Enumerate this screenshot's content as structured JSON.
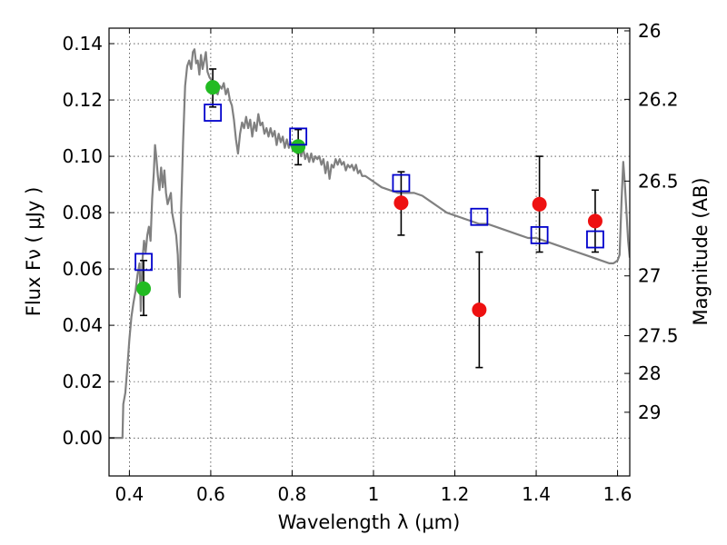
{
  "chart_data": {
    "type": "scatter",
    "xlabel": "Wavelength  λ (μm)",
    "ylabel": "Flux  Fν  ( μJy )",
    "y2label": "Magnitude (AB)",
    "xlim": [
      0.35,
      1.63
    ],
    "ylim": [
      -0.0135,
      0.1455
    ],
    "grid": true,
    "x_ticks": [
      {
        "value": 0.4,
        "label": "0.4"
      },
      {
        "value": 0.6,
        "label": "0.6"
      },
      {
        "value": 0.8,
        "label": "0.8"
      },
      {
        "value": 1.0,
        "label": "1"
      },
      {
        "value": 1.2,
        "label": "1.2"
      },
      {
        "value": 1.4,
        "label": "1.4"
      },
      {
        "value": 1.6,
        "label": "1.6"
      }
    ],
    "y_ticks": [
      {
        "value": 0.0,
        "label": "0.00"
      },
      {
        "value": 0.02,
        "label": "0.02"
      },
      {
        "value": 0.04,
        "label": "0.04"
      },
      {
        "value": 0.06,
        "label": "0.06"
      },
      {
        "value": 0.08,
        "label": "0.08"
      },
      {
        "value": 0.1,
        "label": "0.10"
      },
      {
        "value": 0.12,
        "label": "0.12"
      },
      {
        "value": 0.14,
        "label": "0.14"
      }
    ],
    "y2_ticks": [
      {
        "mag": 26,
        "label": "26"
      },
      {
        "mag": 26.2,
        "label": "26.2"
      },
      {
        "mag": 26.5,
        "label": "26.5"
      },
      {
        "mag": 27,
        "label": "27"
      },
      {
        "mag": 27.5,
        "label": "27.5"
      },
      {
        "mag": 28,
        "label": "28"
      },
      {
        "mag": 29,
        "label": "29"
      }
    ],
    "colors": {
      "model": "#808080",
      "optical_points": "#22bb22",
      "nir_points": "#ee1111",
      "model_squares": "#0000cc",
      "errorbars": "#000000",
      "grid": "#000000"
    },
    "series": [
      {
        "type": "line",
        "points": [
          [
            0.35,
            0.0
          ],
          [
            0.38,
            0.0
          ],
          [
            0.383,
            0.0
          ],
          [
            0.385,
            0.012
          ],
          [
            0.39,
            0.016
          ],
          [
            0.395,
            0.025
          ],
          [
            0.4,
            0.035
          ],
          [
            0.405,
            0.043
          ],
          [
            0.41,
            0.048
          ],
          [
            0.415,
            0.052
          ],
          [
            0.42,
            0.058
          ],
          [
            0.425,
            0.062
          ],
          [
            0.428,
            0.045
          ],
          [
            0.432,
            0.063
          ],
          [
            0.436,
            0.07
          ],
          [
            0.44,
            0.066
          ],
          [
            0.444,
            0.072
          ],
          [
            0.448,
            0.075
          ],
          [
            0.452,
            0.07
          ],
          [
            0.456,
            0.085
          ],
          [
            0.46,
            0.094
          ],
          [
            0.463,
            0.104
          ],
          [
            0.466,
            0.1
          ],
          [
            0.47,
            0.093
          ],
          [
            0.474,
            0.088
          ],
          [
            0.478,
            0.096
          ],
          [
            0.482,
            0.089
          ],
          [
            0.486,
            0.095
          ],
          [
            0.49,
            0.087
          ],
          [
            0.494,
            0.083
          ],
          [
            0.498,
            0.085
          ],
          [
            0.502,
            0.087
          ],
          [
            0.505,
            0.08
          ],
          [
            0.51,
            0.076
          ],
          [
            0.515,
            0.072
          ],
          [
            0.519,
            0.065
          ],
          [
            0.522,
            0.052
          ],
          [
            0.524,
            0.05
          ],
          [
            0.527,
            0.08
          ],
          [
            0.532,
            0.105
          ],
          [
            0.537,
            0.125
          ],
          [
            0.542,
            0.132
          ],
          [
            0.547,
            0.134
          ],
          [
            0.552,
            0.131
          ],
          [
            0.556,
            0.137
          ],
          [
            0.56,
            0.138
          ],
          [
            0.564,
            0.133
          ],
          [
            0.568,
            0.134
          ],
          [
            0.572,
            0.129
          ],
          [
            0.576,
            0.136
          ],
          [
            0.58,
            0.131
          ],
          [
            0.584,
            0.134
          ],
          [
            0.588,
            0.137
          ],
          [
            0.592,
            0.13
          ],
          [
            0.597,
            0.128
          ],
          [
            0.602,
            0.127
          ],
          [
            0.607,
            0.125
          ],
          [
            0.612,
            0.123
          ],
          [
            0.617,
            0.122
          ],
          [
            0.622,
            0.125
          ],
          [
            0.627,
            0.124
          ],
          [
            0.632,
            0.126
          ],
          [
            0.637,
            0.122
          ],
          [
            0.642,
            0.124
          ],
          [
            0.647,
            0.12
          ],
          [
            0.652,
            0.118
          ],
          [
            0.657,
            0.113
          ],
          [
            0.662,
            0.106
          ],
          [
            0.667,
            0.101
          ],
          [
            0.672,
            0.108
          ],
          [
            0.677,
            0.112
          ],
          [
            0.682,
            0.11
          ],
          [
            0.687,
            0.114
          ],
          [
            0.692,
            0.11
          ],
          [
            0.697,
            0.113
          ],
          [
            0.702,
            0.107
          ],
          [
            0.707,
            0.112
          ],
          [
            0.712,
            0.109
          ],
          [
            0.717,
            0.115
          ],
          [
            0.722,
            0.111
          ],
          [
            0.727,
            0.112
          ],
          [
            0.732,
            0.108
          ],
          [
            0.737,
            0.11
          ],
          [
            0.742,
            0.107
          ],
          [
            0.747,
            0.11
          ],
          [
            0.752,
            0.107
          ],
          [
            0.757,
            0.109
          ],
          [
            0.762,
            0.104
          ],
          [
            0.767,
            0.108
          ],
          [
            0.772,
            0.105
          ],
          [
            0.777,
            0.107
          ],
          [
            0.782,
            0.103
          ],
          [
            0.787,
            0.106
          ],
          [
            0.792,
            0.103
          ],
          [
            0.797,
            0.105
          ],
          [
            0.802,
            0.102
          ],
          [
            0.807,
            0.104
          ],
          [
            0.812,
            0.101
          ],
          [
            0.817,
            0.103
          ],
          [
            0.822,
            0.1
          ],
          [
            0.827,
            0.103
          ],
          [
            0.832,
            0.099
          ],
          [
            0.837,
            0.101
          ],
          [
            0.842,
            0.098
          ],
          [
            0.847,
            0.101
          ],
          [
            0.852,
            0.098
          ],
          [
            0.857,
            0.1
          ],
          [
            0.862,
            0.099
          ],
          [
            0.867,
            0.1
          ],
          [
            0.872,
            0.097
          ],
          [
            0.877,
            0.099
          ],
          [
            0.882,
            0.094
          ],
          [
            0.887,
            0.098
          ],
          [
            0.892,
            0.092
          ],
          [
            0.897,
            0.097
          ],
          [
            0.902,
            0.096
          ],
          [
            0.907,
            0.099
          ],
          [
            0.912,
            0.097
          ],
          [
            0.917,
            0.099
          ],
          [
            0.922,
            0.097
          ],
          [
            0.927,
            0.098
          ],
          [
            0.932,
            0.095
          ],
          [
            0.937,
            0.097
          ],
          [
            0.942,
            0.096
          ],
          [
            0.947,
            0.097
          ],
          [
            0.952,
            0.095
          ],
          [
            0.957,
            0.097
          ],
          [
            0.962,
            0.094
          ],
          [
            0.967,
            0.095
          ],
          [
            0.972,
            0.093
          ],
          [
            0.98,
            0.093
          ],
          [
            0.99,
            0.092
          ],
          [
            1.0,
            0.091
          ],
          [
            1.01,
            0.09
          ],
          [
            1.02,
            0.089
          ],
          [
            1.04,
            0.088
          ],
          [
            1.06,
            0.087
          ],
          [
            1.08,
            0.087
          ],
          [
            1.1,
            0.087
          ],
          [
            1.12,
            0.086
          ],
          [
            1.14,
            0.084
          ],
          [
            1.16,
            0.082
          ],
          [
            1.18,
            0.08
          ],
          [
            1.2,
            0.079
          ],
          [
            1.22,
            0.078
          ],
          [
            1.24,
            0.077
          ],
          [
            1.26,
            0.076
          ],
          [
            1.28,
            0.076
          ],
          [
            1.3,
            0.075
          ],
          [
            1.32,
            0.074
          ],
          [
            1.34,
            0.073
          ],
          [
            1.36,
            0.072
          ],
          [
            1.38,
            0.071
          ],
          [
            1.4,
            0.071
          ],
          [
            1.42,
            0.07
          ],
          [
            1.44,
            0.069
          ],
          [
            1.46,
            0.068
          ],
          [
            1.48,
            0.067
          ],
          [
            1.5,
            0.066
          ],
          [
            1.52,
            0.065
          ],
          [
            1.54,
            0.064
          ],
          [
            1.56,
            0.063
          ],
          [
            1.58,
            0.062
          ],
          [
            1.59,
            0.062
          ],
          [
            1.6,
            0.063
          ],
          [
            1.605,
            0.065
          ],
          [
            1.61,
            0.085
          ],
          [
            1.614,
            0.098
          ],
          [
            1.618,
            0.09
          ],
          [
            1.622,
            0.08
          ],
          [
            1.626,
            0.07
          ],
          [
            1.63,
            0.064
          ]
        ]
      },
      {
        "type": "scatter",
        "marker": "circle",
        "points": [
          {
            "x": 0.435,
            "y": 0.053,
            "err_lo": 0.0435,
            "err_hi": 0.063
          },
          {
            "x": 0.605,
            "y": 0.1245,
            "err_lo": 0.1175,
            "err_hi": 0.131
          },
          {
            "x": 0.815,
            "y": 0.1035,
            "err_lo": 0.097,
            "err_hi": 0.1095
          }
        ]
      },
      {
        "type": "scatter",
        "marker": "circle",
        "points": [
          {
            "x": 1.068,
            "y": 0.0835,
            "err_lo": 0.072,
            "err_hi": 0.0945
          },
          {
            "x": 1.26,
            "y": 0.0455,
            "err_lo": 0.025,
            "err_hi": 0.066
          },
          {
            "x": 1.408,
            "y": 0.083,
            "err_lo": 0.066,
            "err_hi": 0.1
          },
          {
            "x": 1.545,
            "y": 0.077,
            "err_lo": 0.066,
            "err_hi": 0.088
          }
        ]
      },
      {
        "type": "scatter",
        "marker": "square",
        "points": [
          {
            "x": 0.435,
            "y": 0.0625
          },
          {
            "x": 0.605,
            "y": 0.1155
          },
          {
            "x": 0.815,
            "y": 0.107
          },
          {
            "x": 1.068,
            "y": 0.0905
          },
          {
            "x": 1.26,
            "y": 0.0785
          },
          {
            "x": 1.408,
            "y": 0.072
          },
          {
            "x": 1.545,
            "y": 0.0705
          }
        ]
      }
    ]
  }
}
